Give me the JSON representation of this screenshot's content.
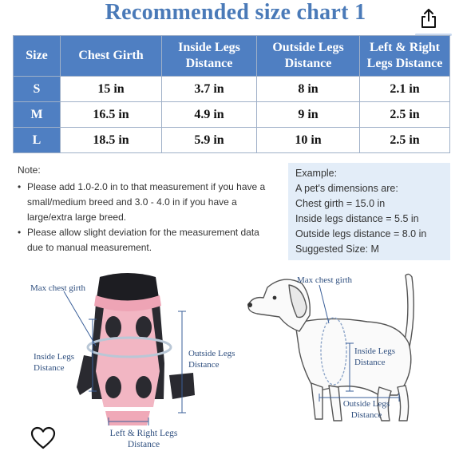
{
  "title": "Recommended size chart 1",
  "table": {
    "headers": [
      "Size",
      "Chest Girth",
      "Inside Legs Distance",
      "Outside Legs Distance",
      "Left & Right Legs Distance"
    ],
    "rows": [
      [
        "S",
        "15 in",
        "3.7 in",
        "8 in",
        "2.1 in"
      ],
      [
        "M",
        "16.5 in",
        "4.9 in",
        "9 in",
        "2.5 in"
      ],
      [
        "L",
        "18.5 in",
        "5.9 in",
        "10 in",
        "2.5 in"
      ]
    ]
  },
  "note": {
    "title": "Note:",
    "items": [
      "Please add 1.0-2.0 in to that measurement if you have a small/medium breed and  3.0 - 4.0  in   if you have a large/extra large breed.",
      "Please allow slight deviation for the measurement data due to manual measurement."
    ]
  },
  "example": {
    "title": "Example:",
    "lines": [
      "A pet's dimensions are:",
      "Chest girth = 15.0 in",
      "Inside legs distance = 5.5 in",
      "Outside legs distance = 8.0 in",
      "Suggested Size: M"
    ]
  },
  "carrier_labels": {
    "max_chest": "Max chest girth",
    "inside_legs": "Inside Legs Distance",
    "outside_legs": "Outside Legs Distance",
    "left_right": "Left & Right Legs Distance"
  },
  "dog_labels": {
    "max_chest": "Max chest girth",
    "inside_legs": "Inside Legs Distance",
    "outside_legs": "Outside Legs Distance"
  },
  "icons": {
    "share": "share-icon",
    "favorite": "heart-icon"
  },
  "colors": {
    "title": "#4a7ab8",
    "header_bg": "#4f7fc2",
    "example_bg": "#e3edf8",
    "carrier_pink": "#f2b6c3"
  }
}
